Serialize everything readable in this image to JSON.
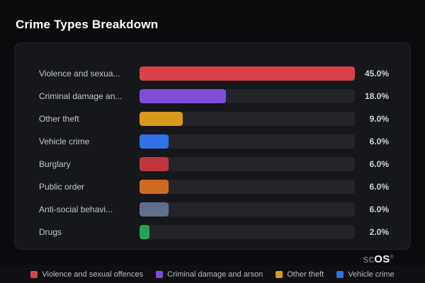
{
  "title": "Crime Types Breakdown",
  "watermark": {
    "prefix": "sc",
    "suffix": "OS",
    "reg": "®"
  },
  "chart_data": {
    "type": "bar",
    "orientation": "horizontal",
    "title": "Crime Types Breakdown",
    "xlabel": "",
    "ylabel": "",
    "max_value": 45.0,
    "grid": false,
    "legend_position": "bottom",
    "categories": [
      "Violence and sexua...",
      "Criminal damage an...",
      "Other theft",
      "Vehicle crime",
      "Burglary",
      "Public order",
      "Anti-social behavi...",
      "Drugs"
    ],
    "values": [
      45.0,
      18.0,
      9.0,
      6.0,
      6.0,
      6.0,
      6.0,
      2.0
    ],
    "value_labels": [
      "45.0%",
      "18.0%",
      "9.0%",
      "6.0%",
      "6.0%",
      "6.0%",
      "6.0%",
      "2.0%"
    ],
    "bar_colors": [
      "#d8414a",
      "#7d4ed6",
      "#d9991c",
      "#3070e8",
      "#c1363c",
      "#d06a21",
      "#61708a",
      "#23a457"
    ],
    "legend": [
      {
        "label": "Violence and sexual offences",
        "color": "#d8414a"
      },
      {
        "label": "Criminal damage and arson",
        "color": "#7d4ed6"
      },
      {
        "label": "Other theft",
        "color": "#d9991c"
      },
      {
        "label": "Vehicle crime",
        "color": "#3070e8"
      }
    ]
  }
}
